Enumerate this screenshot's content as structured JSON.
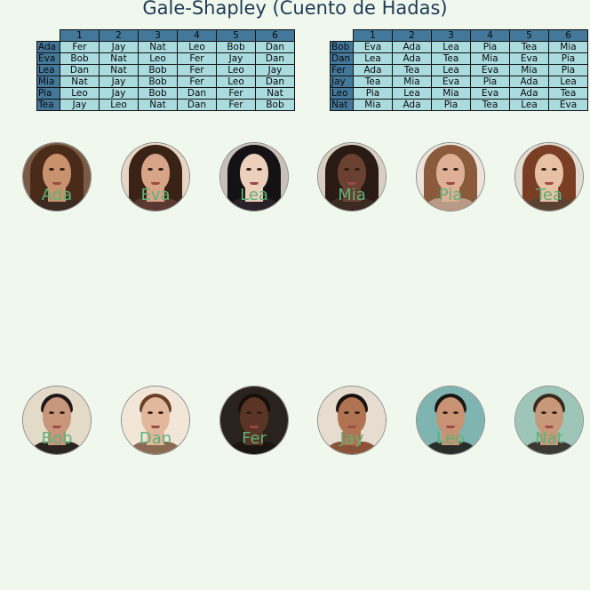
{
  "title": "Gale-Shapley (Cuento de Hadas)",
  "women_table": {
    "headers": [
      "1",
      "2",
      "3",
      "4",
      "5",
      "6"
    ],
    "rows": [
      {
        "name": "Ada",
        "prefs": [
          "Fer",
          "Jay",
          "Nat",
          "Leo",
          "Bob",
          "Dan"
        ]
      },
      {
        "name": "Eva",
        "prefs": [
          "Bob",
          "Nat",
          "Leo",
          "Fer",
          "Jay",
          "Dan"
        ]
      },
      {
        "name": "Lea",
        "prefs": [
          "Dan",
          "Nat",
          "Bob",
          "Fer",
          "Leo",
          "Jay"
        ]
      },
      {
        "name": "Mia",
        "prefs": [
          "Nat",
          "Jay",
          "Bob",
          "Fer",
          "Leo",
          "Dan"
        ]
      },
      {
        "name": "Pia",
        "prefs": [
          "Leo",
          "Jay",
          "Bob",
          "Dan",
          "Fer",
          "Nat"
        ]
      },
      {
        "name": "Tea",
        "prefs": [
          "Jay",
          "Leo",
          "Nat",
          "Dan",
          "Fer",
          "Bob"
        ]
      }
    ]
  },
  "men_table": {
    "headers": [
      "1",
      "2",
      "3",
      "4",
      "5",
      "6"
    ],
    "rows": [
      {
        "name": "Bob",
        "prefs": [
          "Eva",
          "Ada",
          "Lea",
          "Pia",
          "Tea",
          "Mia"
        ]
      },
      {
        "name": "Dan",
        "prefs": [
          "Lea",
          "Ada",
          "Tea",
          "Mia",
          "Eva",
          "Pia"
        ]
      },
      {
        "name": "Fer",
        "prefs": [
          "Ada",
          "Tea",
          "Lea",
          "Eva",
          "Mia",
          "Pia"
        ]
      },
      {
        "name": "Jay",
        "prefs": [
          "Tea",
          "Mia",
          "Eva",
          "Pia",
          "Ada",
          "Lea"
        ]
      },
      {
        "name": "Leo",
        "prefs": [
          "Pia",
          "Lea",
          "Mia",
          "Eva",
          "Ada",
          "Tea"
        ]
      },
      {
        "name": "Nat",
        "prefs": [
          "Mia",
          "Ada",
          "Pia",
          "Tea",
          "Lea",
          "Eva"
        ]
      }
    ]
  },
  "women": [
    {
      "name": "Ada",
      "skin": "#c9926e",
      "hair": "#4a2a18",
      "bg": "#7a5a44",
      "torso": "#3a2a22"
    },
    {
      "name": "Eva",
      "skin": "#d8a488",
      "hair": "#3a2216",
      "bg": "#e8d6c4",
      "torso": "#5a3a30"
    },
    {
      "name": "Lea",
      "skin": "#ecd0bc",
      "hair": "#141214",
      "bg": "#c8c0b8",
      "torso": "#2a2228"
    },
    {
      "name": "Mia",
      "skin": "#6a4030",
      "hair": "#2a1a14",
      "bg": "#d8cfc2",
      "torso": "#3a2a22"
    },
    {
      "name": "Pia",
      "skin": "#deb096",
      "hair": "#8a5a3a",
      "bg": "#ece4dc",
      "torso": "#b89a86"
    },
    {
      "name": "Tea",
      "skin": "#e8c0a4",
      "hair": "#7a3e24",
      "bg": "#e2dcd2",
      "torso": "#5a4232"
    }
  ],
  "men": [
    {
      "name": "Bob",
      "skin": "#c8967a",
      "hair": "#1e1a18",
      "bg": "#e4dac8",
      "torso": "#2a241e"
    },
    {
      "name": "Dan",
      "skin": "#e2b89c",
      "hair": "#6a4028",
      "bg": "#f2e6d8",
      "torso": "#8a6a52"
    },
    {
      "name": "Fer",
      "skin": "#5a3424",
      "hair": "#140e0c",
      "bg": "#2a221c",
      "torso": "#1a1412"
    },
    {
      "name": "Jay",
      "skin": "#b07452",
      "hair": "#1a1210",
      "bg": "#e6ddd0",
      "torso": "#8a5238"
    },
    {
      "name": "Leo",
      "skin": "#c89274",
      "hair": "#1a1814",
      "bg": "#7fb4b0",
      "torso": "#2a2c2a"
    },
    {
      "name": "Nat",
      "skin": "#c8987a",
      "hair": "#3a2a1e",
      "bg": "#9ec6b8",
      "torso": "#3a3a32"
    }
  ]
}
